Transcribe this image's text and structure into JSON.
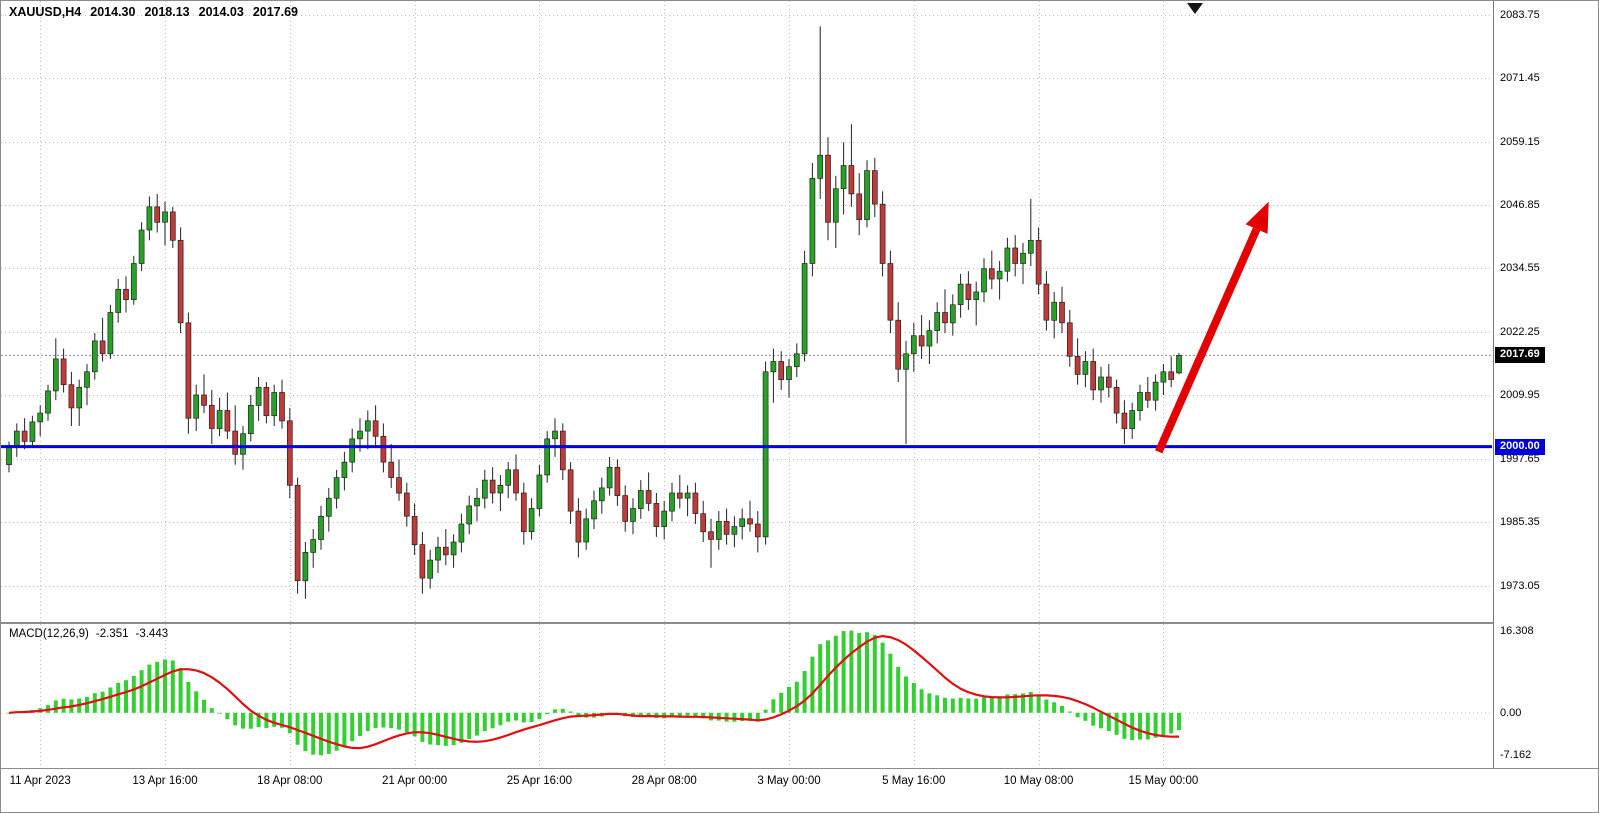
{
  "header": {
    "symbol_period": "XAUUSD,H4",
    "open": "2014.30",
    "high": "2018.13",
    "low": "2014.03",
    "close": "2017.69"
  },
  "price_axis": {
    "bid_label": "2017.69",
    "level_label": "2000.00"
  },
  "macd_panel": {
    "title": "MACD(12,26,9)",
    "value": "-2.351",
    "signal": "-3.443",
    "max_label": "16.308",
    "zero_label": "0.00",
    "min_label": "-7.162"
  },
  "colors": {
    "bull": "#26A326",
    "bear": "#C13A3A",
    "outline": "#222222",
    "macd_bar": "#33CF33",
    "macd_signal": "#E01010",
    "level_line": "#0000E6",
    "arrow": "#E30000",
    "grid": "#c0c0c0",
    "bid_box_bg": "#000000",
    "level_box_bg": "#0000D8"
  },
  "chart_data": {
    "type": "candlestick",
    "symbol": "XAUUSD",
    "timeframe": "H4",
    "start_time": "2023-04-10 08:00",
    "bars_per_day": 6,
    "weekends_skipped": true,
    "y_range": [
      1966.0,
      2086.0
    ],
    "price_ticks": [
      2083.75,
      2071.45,
      2059.15,
      2046.85,
      2034.55,
      2022.25,
      2009.95,
      1997.65,
      1985.35,
      1973.05
    ],
    "time_ticks": [
      {
        "label": "11 Apr 2023",
        "bar": 4
      },
      {
        "label": "13 Apr 16:00",
        "bar": 20
      },
      {
        "label": "18 Apr 08:00",
        "bar": 36
      },
      {
        "label": "21 Apr 00:00",
        "bar": 52
      },
      {
        "label": "25 Apr 16:00",
        "bar": 68
      },
      {
        "label": "28 Apr 08:00",
        "bar": 84
      },
      {
        "label": "3 May 00:00",
        "bar": 100
      },
      {
        "label": "5 May 16:00",
        "bar": 116
      },
      {
        "label": "10 May 08:00",
        "bar": 132
      },
      {
        "label": "15 May 00:00",
        "bar": 148
      }
    ],
    "bid_price": 2017.69,
    "level_price": 2000.0,
    "indicator": {
      "name": "MACD",
      "fast": 12,
      "slow": 26,
      "signal": 9
    },
    "arrow": {
      "from_bar": 147.4,
      "from_price": 1999.0,
      "to_bar": 161.5,
      "to_price": 2047.5
    },
    "candles": [
      [
        1996.5,
        2001,
        1995,
        2000.2
      ],
      [
        2000.2,
        2004.5,
        1998,
        2003
      ],
      [
        2003,
        2005.5,
        1999.5,
        2001
      ],
      [
        2001,
        2006,
        2000,
        2004.8
      ],
      [
        2004.8,
        2008,
        2002,
        2006.5
      ],
      [
        2006.5,
        2012,
        2005,
        2010.8
      ],
      [
        2010.8,
        2021,
        2009,
        2017
      ],
      [
        2017,
        2019,
        2010.5,
        2012
      ],
      [
        2012,
        2014.5,
        2004,
        2007.5
      ],
      [
        2007.5,
        2013,
        2004,
        2011.5
      ],
      [
        2011.5,
        2016,
        2008,
        2014.5
      ],
      [
        2014.5,
        2022,
        2013,
        2020.5
      ],
      [
        2020.5,
        2025,
        2016.5,
        2018
      ],
      [
        2018,
        2027.5,
        2017,
        2026
      ],
      [
        2026,
        2032.5,
        2024,
        2030.5
      ],
      [
        2030.5,
        2033,
        2026,
        2028.5
      ],
      [
        2028.5,
        2037,
        2027.5,
        2035.5
      ],
      [
        2035.5,
        2043.5,
        2034,
        2042
      ],
      [
        2042,
        2048.5,
        2040,
        2046.5
      ],
      [
        2046.5,
        2049,
        2041.5,
        2043.5
      ],
      [
        2043.5,
        2047.5,
        2039,
        2045.5
      ],
      [
        2045.5,
        2046.5,
        2038.5,
        2040
      ],
      [
        2040,
        2042.5,
        2022,
        2024
      ],
      [
        2024,
        2026,
        2002.5,
        2005.5
      ],
      [
        2005.5,
        2012,
        2003,
        2010
      ],
      [
        2010,
        2014,
        2006.5,
        2008
      ],
      [
        2008,
        2011,
        2000.5,
        2003.5
      ],
      [
        2003.5,
        2009.5,
        2002,
        2007
      ],
      [
        2007,
        2010.5,
        2001.5,
        2003
      ],
      [
        2003,
        2008,
        1996.5,
        1998.5
      ],
      [
        1998.5,
        2004,
        1995.5,
        2002.5
      ],
      [
        2002.5,
        2010,
        2001,
        2008
      ],
      [
        2008,
        2013.5,
        2005,
        2011.5
      ],
      [
        2011.5,
        2012.5,
        2004.5,
        2006
      ],
      [
        2006,
        2012,
        2004,
        2010.5
      ],
      [
        2010.5,
        2013,
        2003.5,
        2005
      ],
      [
        2005,
        2007.5,
        1990,
        1992.5
      ],
      [
        1992.5,
        1994,
        1971.5,
        1974
      ],
      [
        1974,
        1981.5,
        1970.5,
        1979.5
      ],
      [
        1979.5,
        1984,
        1976.5,
        1982
      ],
      [
        1982,
        1988.5,
        1980,
        1986.5
      ],
      [
        1986.5,
        1992,
        1983.5,
        1990
      ],
      [
        1990,
        1995.5,
        1988,
        1994
      ],
      [
        1994,
        1999,
        1991.5,
        1997
      ],
      [
        1997,
        2003.5,
        1995,
        2001.5
      ],
      [
        2001.5,
        2005.5,
        1999,
        2003
      ],
      [
        2003,
        2007,
        1999.5,
        2005
      ],
      [
        2005,
        2008,
        2000,
        2002
      ],
      [
        2002,
        2004.5,
        1995,
        1997
      ],
      [
        1997,
        2000.5,
        1992,
        1994
      ],
      [
        1994,
        1997.5,
        1989.5,
        1991
      ],
      [
        1991,
        1993,
        1984.5,
        1986.5
      ],
      [
        1986.5,
        1989,
        1979,
        1981
      ],
      [
        1981,
        1983.5,
        1971.5,
        1974.5
      ],
      [
        1974.5,
        1980,
        1972.5,
        1978
      ],
      [
        1978,
        1982.5,
        1975.5,
        1980.5
      ],
      [
        1980.5,
        1984,
        1977,
        1979
      ],
      [
        1979,
        1983,
        1976.5,
        1981.5
      ],
      [
        1981.5,
        1987,
        1979.5,
        1985
      ],
      [
        1985,
        1990.5,
        1983,
        1988.5
      ],
      [
        1988.5,
        1992,
        1985.5,
        1990
      ],
      [
        1990,
        1995.5,
        1988,
        1993.5
      ],
      [
        1993.5,
        1996,
        1989,
        1991
      ],
      [
        1991,
        1994.5,
        1987.5,
        1992.5
      ],
      [
        1992.5,
        1997,
        1990,
        1995.5
      ],
      [
        1995.5,
        1998.5,
        1989.5,
        1991
      ],
      [
        1991,
        1993,
        1981,
        1983.5
      ],
      [
        1983.5,
        1990,
        1982,
        1988
      ],
      [
        1988,
        1996.5,
        1986.5,
        1994.5
      ],
      [
        1994.5,
        2003,
        1993,
        2001.5
      ],
      [
        2001.5,
        2005.5,
        1998,
        2003
      ],
      [
        2003,
        2004.5,
        1993.5,
        1995.5
      ],
      [
        1995.5,
        1997,
        1985,
        1987.5
      ],
      [
        1987.5,
        1990,
        1978.5,
        1981.5
      ],
      [
        1981.5,
        1988,
        1980,
        1986
      ],
      [
        1986,
        1991.5,
        1984,
        1989.5
      ],
      [
        1989.5,
        1994,
        1987,
        1992
      ],
      [
        1992,
        1998,
        1990.5,
        1996
      ],
      [
        1996,
        1997.5,
        1988.5,
        1990.5
      ],
      [
        1990.5,
        1992.5,
        1983.5,
        1985.5
      ],
      [
        1985.5,
        1990,
        1983,
        1988
      ],
      [
        1988,
        1993.5,
        1986,
        1991.5
      ],
      [
        1991.5,
        1995,
        1987.5,
        1989
      ],
      [
        1989,
        1991,
        1982.5,
        1984.5
      ],
      [
        1984.5,
        1989.5,
        1982,
        1987.5
      ],
      [
        1987.5,
        1993,
        1985.5,
        1991
      ],
      [
        1991,
        1994.5,
        1988,
        1990
      ],
      [
        1990,
        1992.5,
        1986.5,
        1991
      ],
      [
        1991,
        1993,
        1985,
        1987
      ],
      [
        1987,
        1989.5,
        1981.5,
        1983.5
      ],
      [
        1983.5,
        1986,
        1976.5,
        1982
      ],
      [
        1982,
        1987.5,
        1980,
        1985.5
      ],
      [
        1985.5,
        1988,
        1981,
        1983
      ],
      [
        1983,
        1986.5,
        1980.5,
        1984.5
      ],
      [
        1984.5,
        1988,
        1982,
        1986
      ],
      [
        1986,
        1989.5,
        1983.5,
        1985
      ],
      [
        1985,
        1987.5,
        1979.5,
        1982.5
      ],
      [
        1982.5,
        2016.5,
        1981,
        2014.5
      ],
      [
        2014.5,
        2019,
        2008.5,
        2016.5
      ],
      [
        2016.5,
        2018.5,
        2011,
        2013
      ],
      [
        2013,
        2017,
        2009.5,
        2015.5
      ],
      [
        2015.5,
        2020,
        2013.5,
        2018
      ],
      [
        2018,
        2038,
        2016.5,
        2035.5
      ],
      [
        2035.5,
        2055,
        2033,
        2052
      ],
      [
        2052,
        2081.5,
        2048,
        2056.5
      ],
      [
        2056.5,
        2060,
        2040,
        2043.5
      ],
      [
        2043.5,
        2052.5,
        2038.5,
        2050
      ],
      [
        2050,
        2059,
        2045,
        2054.5
      ],
      [
        2054.5,
        2062.5,
        2046.5,
        2049
      ],
      [
        2049,
        2053,
        2041,
        2044
      ],
      [
        2044,
        2055.5,
        2042.5,
        2053.5
      ],
      [
        2053.5,
        2056,
        2044.5,
        2047
      ],
      [
        2047,
        2049.5,
        2033,
        2035.5
      ],
      [
        2035.5,
        2038,
        2022,
        2024.5
      ],
      [
        2024.5,
        2028,
        2012.5,
        2015
      ],
      [
        2015,
        2020.5,
        2000.5,
        2018
      ],
      [
        2018,
        2024,
        2014.5,
        2021.5
      ],
      [
        2021.5,
        2025.5,
        2017,
        2019.5
      ],
      [
        2019.5,
        2024.5,
        2016,
        2022.5
      ],
      [
        2022.5,
        2028,
        2020,
        2026
      ],
      [
        2026,
        2030.5,
        2022,
        2024
      ],
      [
        2024,
        2029.5,
        2021.5,
        2027.5
      ],
      [
        2027.5,
        2033.5,
        2025,
        2031.5
      ],
      [
        2031.5,
        2034,
        2026.5,
        2028.5
      ],
      [
        2028.5,
        2032,
        2023.5,
        2030
      ],
      [
        2030,
        2036.5,
        2028,
        2034.5
      ],
      [
        2034.5,
        2038,
        2030.5,
        2032.5
      ],
      [
        2032.5,
        2036,
        2028.5,
        2034
      ],
      [
        2034,
        2040.5,
        2032,
        2038.5
      ],
      [
        2038.5,
        2041,
        2033,
        2035.5
      ],
      [
        2035.5,
        2039.5,
        2031.5,
        2037.5
      ],
      [
        2037.5,
        2048,
        2035,
        2040
      ],
      [
        2040,
        2042.5,
        2029.5,
        2031.5
      ],
      [
        2031.5,
        2034,
        2022.5,
        2024.5
      ],
      [
        2024.5,
        2030,
        2021,
        2028
      ],
      [
        2028,
        2031,
        2022,
        2024
      ],
      [
        2024,
        2026.5,
        2015.5,
        2017.5
      ],
      [
        2017.5,
        2021,
        2012,
        2014
      ],
      [
        2014,
        2018.5,
        2011.5,
        2016.5
      ],
      [
        2016.5,
        2019,
        2009,
        2011
      ],
      [
        2011,
        2015.5,
        2008.5,
        2013.5
      ],
      [
        2013.5,
        2016,
        2009.5,
        2011.5
      ],
      [
        2011.5,
        2013,
        2004.5,
        2006.5
      ],
      [
        2006.5,
        2009,
        2000.5,
        2003.5
      ],
      [
        2003.5,
        2008.5,
        2001.5,
        2007
      ],
      [
        2007,
        2012,
        2005,
        2010.5
      ],
      [
        2010.5,
        2013.5,
        2007.5,
        2009
      ],
      [
        2009,
        2014,
        2007,
        2012.5
      ],
      [
        2012.5,
        2016,
        2010,
        2014.5
      ],
      [
        2014.5,
        2017.5,
        2011.5,
        2013
      ],
      [
        2014.3,
        2018.13,
        2014.03,
        2017.69
      ]
    ]
  }
}
